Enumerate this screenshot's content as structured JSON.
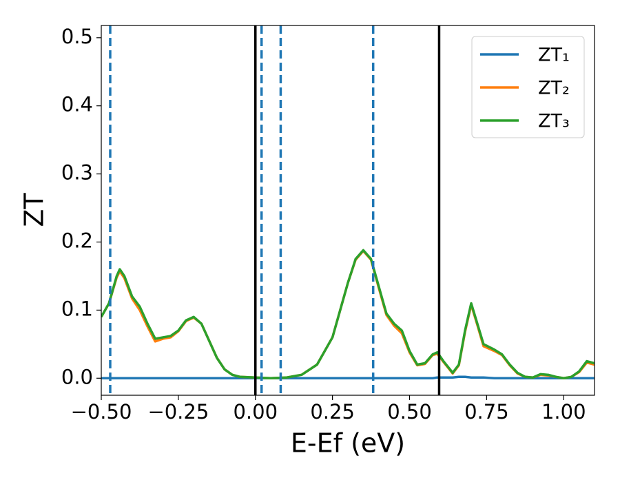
{
  "chart_data": {
    "type": "line",
    "xlabel": "E-Ef (eV)",
    "ylabel": "ZT",
    "xlim": [
      -0.5,
      1.1
    ],
    "ylim": [
      -0.025,
      0.518
    ],
    "xticks": [
      {
        "value": -0.5,
        "label": "−0.50"
      },
      {
        "value": -0.25,
        "label": "−0.25"
      },
      {
        "value": 0,
        "label": "0.00"
      },
      {
        "value": 0.25,
        "label": "0.25"
      },
      {
        "value": 0.5,
        "label": "0.50"
      },
      {
        "value": 0.75,
        "label": "0.75"
      },
      {
        "value": 1,
        "label": "1.00"
      }
    ],
    "yticks": [
      {
        "value": 0,
        "label": "0.0"
      },
      0.1,
      0.2,
      0.3,
      0.4,
      0.5
    ],
    "legend": "upper right",
    "x": [
      -0.5,
      -0.475,
      -0.45,
      -0.44,
      -0.425,
      -0.4,
      -0.375,
      -0.35,
      -0.325,
      -0.3,
      -0.275,
      -0.25,
      -0.225,
      -0.2,
      -0.175,
      -0.15,
      -0.125,
      -0.1,
      -0.075,
      -0.05,
      0,
      0.05,
      0.1,
      0.15,
      0.2,
      0.25,
      0.275,
      0.3,
      0.325,
      0.35,
      0.375,
      0.4,
      0.425,
      0.45,
      0.475,
      0.5,
      0.525,
      0.55,
      0.575,
      0.59,
      0.61,
      0.64,
      0.66,
      0.68,
      0.7,
      0.72,
      0.74,
      0.775,
      0.8,
      0.825,
      0.85,
      0.875,
      0.9,
      0.925,
      0.95,
      0.975,
      1,
      1.025,
      1.05,
      1.075,
      1.1
    ],
    "series": [
      {
        "name": "ZT₁",
        "color": "#1f77b4",
        "values": [
          0,
          0,
          0,
          0,
          0,
          0,
          0,
          0,
          0,
          0,
          0,
          0,
          0,
          0,
          0,
          0,
          0,
          0,
          0,
          0,
          0,
          0,
          0,
          0,
          0,
          0,
          0,
          0,
          0,
          0,
          0,
          0,
          0,
          0,
          0,
          0,
          0,
          0,
          0,
          0.001,
          0.001,
          0.001,
          0.002,
          0.002,
          0.001,
          0.001,
          0.001,
          0,
          0,
          0,
          0,
          0,
          0,
          0,
          0,
          0,
          0,
          0,
          0,
          0,
          0
        ]
      },
      {
        "name": "ZT₂",
        "color": "#ff7f0e",
        "values": [
          0.09,
          0.11,
          0.148,
          0.157,
          0.147,
          0.117,
          0.1,
          0.076,
          0.054,
          0.058,
          0.06,
          0.069,
          0.084,
          0.089,
          0.08,
          0.055,
          0.03,
          0.013,
          0.005,
          0.002,
          0.001,
          0,
          0.001,
          0.005,
          0.02,
          0.06,
          0.1,
          0.14,
          0.174,
          0.187,
          0.174,
          0.133,
          0.093,
          0.077,
          0.066,
          0.038,
          0.019,
          0.021,
          0.034,
          0.036,
          0.024,
          0.007,
          0.019,
          0.068,
          0.108,
          0.078,
          0.047,
          0.04,
          0.034,
          0.019,
          0.007,
          0.002,
          0.001,
          0.005,
          0.004,
          0.002,
          0,
          0.002,
          0.009,
          0.023,
          0.02
        ]
      },
      {
        "name": "ZT₃",
        "color": "#2ca02c",
        "values": [
          0.09,
          0.11,
          0.15,
          0.16,
          0.15,
          0.12,
          0.105,
          0.08,
          0.058,
          0.06,
          0.062,
          0.07,
          0.085,
          0.09,
          0.08,
          0.055,
          0.03,
          0.013,
          0.005,
          0.002,
          0.001,
          0,
          0.001,
          0.005,
          0.02,
          0.06,
          0.1,
          0.14,
          0.175,
          0.188,
          0.175,
          0.135,
          0.095,
          0.08,
          0.07,
          0.04,
          0.02,
          0.022,
          0.035,
          0.038,
          0.025,
          0.008,
          0.02,
          0.07,
          0.11,
          0.08,
          0.05,
          0.042,
          0.035,
          0.02,
          0.008,
          0.002,
          0.001,
          0.006,
          0.005,
          0.002,
          0,
          0.002,
          0.01,
          0.025,
          0.022
        ]
      }
    ],
    "vlines": [
      {
        "x": -0.471,
        "color": "#1f77b4",
        "style": "dashed"
      },
      {
        "x": 0.02,
        "color": "#1f77b4",
        "style": "dashed"
      },
      {
        "x": 0.082,
        "color": "#1f77b4",
        "style": "dashed"
      },
      {
        "x": 0.382,
        "color": "#1f77b4",
        "style": "dashed"
      },
      {
        "x": 0,
        "color": "#000000",
        "style": "solid"
      },
      {
        "x": 0.596,
        "color": "#000000",
        "style": "solid"
      }
    ]
  }
}
